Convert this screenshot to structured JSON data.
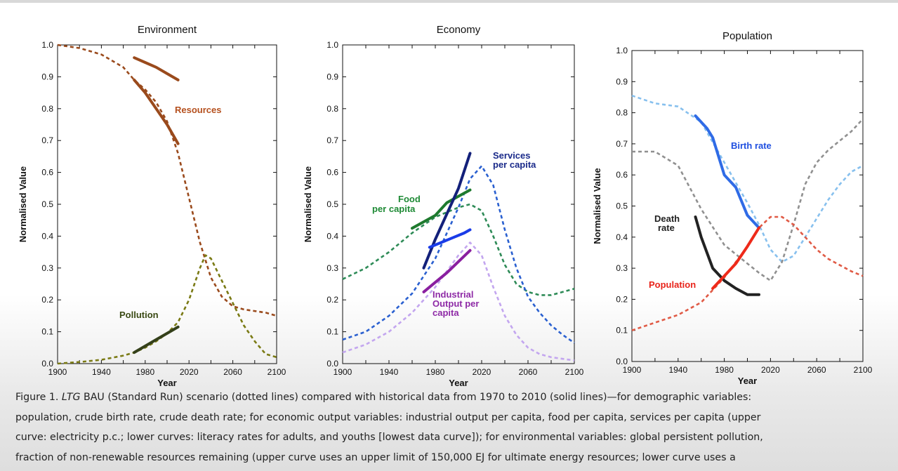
{
  "chart_data": [
    {
      "type": "line",
      "title": "Environment",
      "xlabel": "Year",
      "ylabel": "Normalised Value",
      "xlim": [
        1900,
        2100
      ],
      "ylim": [
        0,
        1.0
      ],
      "xticks": [
        "1900",
        "1940",
        "1980",
        "2020",
        "2060",
        "2100"
      ],
      "yticks": [
        "0.0",
        "0.1",
        "0.2",
        "0.3",
        "0.4",
        "0.5",
        "0.6",
        "0.7",
        "0.8",
        "0.9",
        "1.0"
      ],
      "series": [
        {
          "name": "Resources (scenario)",
          "color": "#9a4a1c",
          "style": "dotted",
          "x": [
            1900,
            1920,
            1940,
            1960,
            1970,
            1980,
            1990,
            2000,
            2010,
            2020,
            2030,
            2040,
            2050,
            2060,
            2070,
            2080,
            2090,
            2100
          ],
          "y": [
            1.0,
            0.99,
            0.97,
            0.93,
            0.89,
            0.86,
            0.82,
            0.76,
            0.66,
            0.52,
            0.38,
            0.27,
            0.21,
            0.18,
            0.17,
            0.165,
            0.16,
            0.15
          ]
        },
        {
          "name": "Resources (historical, lower)",
          "color": "#9a4a1c",
          "style": "solid",
          "x": [
            1970,
            1980,
            1990,
            2000,
            2010
          ],
          "y": [
            0.89,
            0.85,
            0.8,
            0.75,
            0.69
          ]
        },
        {
          "name": "Resources (historical, upper)",
          "color": "#9a4a1c",
          "style": "solid",
          "x": [
            1970,
            1980,
            1990,
            2000,
            2010
          ],
          "y": [
            0.96,
            0.945,
            0.93,
            0.91,
            0.89
          ]
        },
        {
          "name": "Pollution (scenario)",
          "color": "#7a7a14",
          "style": "dotted",
          "x": [
            1900,
            1920,
            1940,
            1960,
            1970,
            1980,
            1990,
            2000,
            2010,
            2020,
            2030,
            2035,
            2040,
            2050,
            2060,
            2070,
            2080,
            2090,
            2100
          ],
          "y": [
            0.0,
            0.005,
            0.012,
            0.025,
            0.035,
            0.05,
            0.07,
            0.095,
            0.13,
            0.2,
            0.3,
            0.34,
            0.33,
            0.26,
            0.19,
            0.12,
            0.07,
            0.03,
            0.02
          ]
        },
        {
          "name": "Pollution (historical)",
          "color": "#34401a",
          "style": "solid",
          "x": [
            1970,
            1980,
            1990,
            2000,
            2010
          ],
          "y": [
            0.035,
            0.055,
            0.075,
            0.095,
            0.115
          ]
        }
      ],
      "annotations": [
        "Resources",
        "Pollution"
      ]
    },
    {
      "type": "line",
      "title": "Economy",
      "xlabel": "Year",
      "ylabel": "Normalised Value",
      "xlim": [
        1900,
        2100
      ],
      "ylim": [
        0,
        1.0
      ],
      "xticks": [
        "1900",
        "1940",
        "1980",
        "2020",
        "2060",
        "2100"
      ],
      "yticks": [
        "0.0",
        "0.1",
        "0.2",
        "0.3",
        "0.4",
        "0.5",
        "0.6",
        "0.7",
        "0.8",
        "0.9",
        "1.0"
      ],
      "series": [
        {
          "name": "Food per capita (scenario)",
          "color": "#2e8b57",
          "style": "dotted",
          "x": [
            1900,
            1920,
            1940,
            1960,
            1980,
            2000,
            2010,
            2020,
            2030,
            2040,
            2050,
            2060,
            2070,
            2080,
            2090,
            2100
          ],
          "y": [
            0.265,
            0.3,
            0.35,
            0.41,
            0.46,
            0.49,
            0.5,
            0.48,
            0.4,
            0.31,
            0.25,
            0.225,
            0.215,
            0.215,
            0.225,
            0.235
          ]
        },
        {
          "name": "Food per capita (historical)",
          "color": "#1e7a2e",
          "style": "solid",
          "x": [
            1960,
            1970,
            1980,
            1990,
            2000,
            2010
          ],
          "y": [
            0.425,
            0.445,
            0.465,
            0.505,
            0.525,
            0.545
          ]
        },
        {
          "name": "Services per capita (scenario)",
          "color": "#2a60d0",
          "style": "dotted",
          "x": [
            1900,
            1920,
            1940,
            1960,
            1980,
            2000,
            2010,
            2020,
            2030,
            2040,
            2050,
            2060,
            2070,
            2080,
            2090,
            2100
          ],
          "y": [
            0.075,
            0.1,
            0.15,
            0.22,
            0.33,
            0.49,
            0.58,
            0.62,
            0.56,
            0.42,
            0.3,
            0.21,
            0.16,
            0.12,
            0.09,
            0.065
          ]
        },
        {
          "name": "Services per capita (historical, upper)",
          "color": "#13207a",
          "style": "solid",
          "x": [
            1970,
            1980,
            1990,
            2000,
            2010
          ],
          "y": [
            0.3,
            0.39,
            0.47,
            0.55,
            0.66
          ]
        },
        {
          "name": "Services per capita (historical, lower)",
          "color": "#1a3ce8",
          "style": "solid",
          "x": [
            1975,
            1985,
            1995,
            2005,
            2010
          ],
          "y": [
            0.365,
            0.38,
            0.395,
            0.41,
            0.42
          ]
        },
        {
          "name": "Industrial output per capita (scenario)",
          "color": "#c3a6ef",
          "style": "dotted",
          "x": [
            1900,
            1920,
            1940,
            1960,
            1980,
            2000,
            2010,
            2020,
            2030,
            2040,
            2050,
            2060,
            2070,
            2080,
            2090,
            2100
          ],
          "y": [
            0.035,
            0.06,
            0.1,
            0.16,
            0.24,
            0.34,
            0.38,
            0.34,
            0.24,
            0.15,
            0.09,
            0.05,
            0.03,
            0.02,
            0.015,
            0.01
          ]
        },
        {
          "name": "Industrial output per capita (historical)",
          "color": "#8a1fa0",
          "style": "solid",
          "x": [
            1970,
            1980,
            1990,
            2000,
            2010
          ],
          "y": [
            0.225,
            0.255,
            0.285,
            0.32,
            0.355
          ]
        }
      ],
      "annotations": [
        "Food",
        "per capita",
        "Services",
        "per capita",
        "Industrial",
        "Output per",
        "capita"
      ]
    },
    {
      "type": "line",
      "title": "Population",
      "xlabel": "Year",
      "ylabel": "Normalised Value",
      "xlim": [
        1900,
        2100
      ],
      "ylim": [
        0,
        1.0
      ],
      "xticks": [
        "1900",
        "1940",
        "1980",
        "2020",
        "2060",
        "2100"
      ],
      "yticks": [
        "0.0",
        "0.1",
        "0.2",
        "0.3",
        "0.4",
        "0.5",
        "0.6",
        "0.7",
        "0.8",
        "0.9",
        "1.0"
      ],
      "series": [
        {
          "name": "Birth rate (scenario)",
          "color": "#87c0ee",
          "style": "dotted",
          "x": [
            1900,
            1920,
            1940,
            1960,
            1980,
            2000,
            2010,
            2020,
            2030,
            2040,
            2050,
            2060,
            2070,
            2080,
            2090,
            2100
          ],
          "y": [
            0.855,
            0.83,
            0.82,
            0.77,
            0.64,
            0.51,
            0.44,
            0.36,
            0.32,
            0.34,
            0.4,
            0.46,
            0.52,
            0.57,
            0.61,
            0.63
          ]
        },
        {
          "name": "Birth rate (historical)",
          "color": "#2f6be6",
          "style": "solid",
          "x": [
            1955,
            1965,
            1970,
            1980,
            1990,
            2000,
            2010
          ],
          "y": [
            0.79,
            0.75,
            0.72,
            0.6,
            0.56,
            0.47,
            0.43
          ]
        },
        {
          "name": "Death rate (scenario)",
          "color": "#909090",
          "style": "dotted",
          "x": [
            1900,
            1920,
            1940,
            1960,
            1980,
            2000,
            2010,
            2020,
            2030,
            2040,
            2050,
            2060,
            2070,
            2080,
            2090,
            2100
          ],
          "y": [
            0.675,
            0.675,
            0.63,
            0.49,
            0.375,
            0.315,
            0.285,
            0.26,
            0.32,
            0.44,
            0.57,
            0.64,
            0.68,
            0.71,
            0.74,
            0.78
          ]
        },
        {
          "name": "Death rate (historical)",
          "color": "#222222",
          "style": "solid",
          "x": [
            1955,
            1960,
            1970,
            1980,
            1990,
            2000,
            2010
          ],
          "y": [
            0.465,
            0.4,
            0.3,
            0.26,
            0.235,
            0.215,
            0.215
          ]
        },
        {
          "name": "Population (scenario)",
          "color": "#e05a45",
          "style": "dotted",
          "x": [
            1900,
            1920,
            1940,
            1960,
            1980,
            2000,
            2010,
            2020,
            2030,
            2040,
            2050,
            2060,
            2070,
            2080,
            2090,
            2100
          ],
          "y": [
            0.1,
            0.125,
            0.15,
            0.19,
            0.27,
            0.37,
            0.43,
            0.465,
            0.465,
            0.44,
            0.4,
            0.36,
            0.33,
            0.31,
            0.29,
            0.275
          ]
        },
        {
          "name": "Population (historical)",
          "color": "#ee2a1a",
          "style": "solid",
          "x": [
            1970,
            1980,
            1990,
            2000,
            2010
          ],
          "y": [
            0.235,
            0.275,
            0.315,
            0.37,
            0.43
          ]
        }
      ],
      "annotations": [
        "Birth rate",
        "Death",
        "rate",
        "Population"
      ]
    }
  ],
  "caption": {
    "prefix": "Figure 1. ",
    "italic": "LTG",
    "line1_rest": " BAU (Standard Run) scenario (dotted lines) compared with historical data from 1970 to 2010 (solid lines)—for demographic variables:",
    "line2": "population, crude birth rate, crude death rate; for economic output variables:  industrial output per capita, food per capita, services per capita (upper",
    "line3": "curve: electricity p.c.; lower curves: literacy rates for adults, and youths [lowest data curve]); for environmental variables: global persistent pollution,",
    "line4": "fraction of non-renewable resources remaining (upper curve uses an upper limit of 150,000 EJ for ultimate energy resources; lower curve uses a"
  }
}
